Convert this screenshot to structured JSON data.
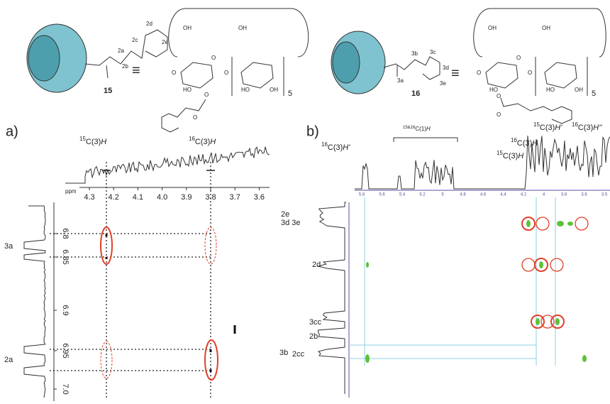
{
  "top": {
    "compound_15": {
      "number": "15",
      "atoms": [
        "2a",
        "2b",
        "2c",
        "2d",
        "2e"
      ],
      "equiv": "≡",
      "structure": [
        "OH",
        "OH",
        "O",
        "O",
        "HO",
        "O",
        "HO",
        "OH",
        "5",
        "O",
        "O"
      ]
    },
    "compound_16": {
      "number": "16",
      "atoms": [
        "3a",
        "3b",
        "3c",
        "3d",
        "3e"
      ],
      "equiv": "≡",
      "structure": [
        "OH",
        "OH",
        "O",
        "O",
        "HO",
        "O",
        "HO",
        "OH",
        "5",
        "O",
        "O"
      ]
    }
  },
  "panel_a": {
    "label": "a)",
    "ppm": "ppm",
    "x_ticks": [
      "4.3",
      "4.2",
      "4.1",
      "4.0",
      "3.9",
      "3.8",
      "3.7",
      "3.6"
    ],
    "y_ticks": [
      "6.8",
      "6.85",
      "6.9",
      "6.95",
      "7.0"
    ],
    "peaks": [
      {
        "sup": "15",
        "main": "C(3)",
        "h": "H"
      },
      {
        "sup": "16",
        "main": "C(3)",
        "h": "H"
      }
    ],
    "rows": [
      "3a",
      "2a"
    ]
  },
  "panel_b": {
    "label": "b)",
    "x_ticks": [
      "5.8",
      "5.6",
      "5.4",
      "5.2",
      "5",
      "4.8",
      "4.6",
      "4.4",
      "4.2",
      "4",
      "3.8",
      "3.6",
      "3.5"
    ],
    "peaks": [
      {
        "sup": "16",
        "main": "C(3)",
        "h": "H'"
      },
      {
        "sup": "15&16",
        "main": "C(1)",
        "h": "H"
      },
      {
        "sup": "16",
        "main": "C(3)",
        "h": "H"
      },
      {
        "sup": "15",
        "main": "C(3)",
        "h": "H"
      },
      {
        "sup": "15",
        "main": "C(3)",
        "h": "H'"
      },
      {
        "sup": "16",
        "main": "C(3)",
        "h": "H''"
      }
    ],
    "rows": [
      "2e",
      "3d 3e",
      "2d",
      "3cc",
      "2b",
      "3b",
      "2cc"
    ]
  }
}
